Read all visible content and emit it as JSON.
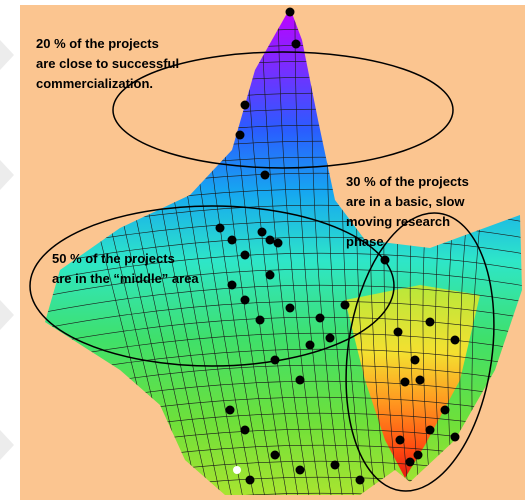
{
  "annotations": [
    {
      "lines": [
        "20 % of the projects",
        "are close to successful",
        "commercialization."
      ]
    },
    {
      "lines": [
        "30 % of the projects",
        "are in a basic, slow",
        "moving research",
        "phase"
      ]
    },
    {
      "lines": [
        "50 % of the projects",
        "are in the “middle” area"
      ]
    }
  ]
}
